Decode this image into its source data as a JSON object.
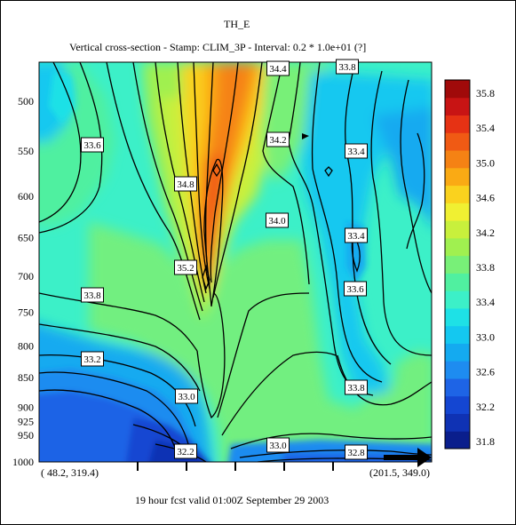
{
  "chart_data": {
    "type": "heatmap",
    "title": "TH_E",
    "subtitle": "Vertical cross-section - Stamp: CLIM_3P      - Interval: 0.2 * 1.0e+01  (?]",
    "footer": "19 hour fcst valid 01:00Z September 29 2003",
    "y_axis": {
      "scale": "pressure-log",
      "reversed": true,
      "ticks": [
        500,
        550,
        600,
        650,
        700,
        750,
        800,
        850,
        900,
        925,
        950,
        1000
      ],
      "range": [
        455,
        1000
      ]
    },
    "x_axis": {
      "start_label": "( 48.2, 319.4)",
      "end_label": "(201.5, 349.0)"
    },
    "colorbar": {
      "levels": [
        31.8,
        32.0,
        32.2,
        32.4,
        32.6,
        32.8,
        33.0,
        33.2,
        33.4,
        33.6,
        33.8,
        34.0,
        34.2,
        34.4,
        34.6,
        34.8,
        35.0,
        35.2,
        35.4,
        35.6,
        35.8
      ],
      "tick_labels": [
        "35.8",
        "35.4",
        "35.0",
        "34.6",
        "34.2",
        "33.8",
        "33.4",
        "33.0",
        "32.6",
        "32.2",
        "31.8"
      ],
      "colors": [
        "#0a1e8c",
        "#0f32b4",
        "#1446d2",
        "#1e64e6",
        "#1e8cf0",
        "#14aaf0",
        "#14c8f0",
        "#1ee1e6",
        "#3cf0c8",
        "#50f0a0",
        "#78f078",
        "#a0f050",
        "#c8f03c",
        "#f0f032",
        "#fad21e",
        "#faaa14",
        "#f58214",
        "#f05a14",
        "#e63214",
        "#c81414",
        "#a00a0a"
      ]
    },
    "contour_labels": [
      {
        "text": "34.4"
      },
      {
        "text": "33.8"
      },
      {
        "text": "33.6"
      },
      {
        "text": "34.2"
      },
      {
        "text": "33.4"
      },
      {
        "text": "34.8"
      },
      {
        "text": "34.0"
      },
      {
        "text": "33.4"
      },
      {
        "text": "35.2"
      },
      {
        "text": "33.6"
      },
      {
        "text": "33.8"
      },
      {
        "text": "33.2"
      },
      {
        "text": "33.8"
      },
      {
        "text": "33.0"
      },
      {
        "text": "32.2"
      },
      {
        "text": "33.0"
      },
      {
        "text": "32.8"
      }
    ]
  }
}
